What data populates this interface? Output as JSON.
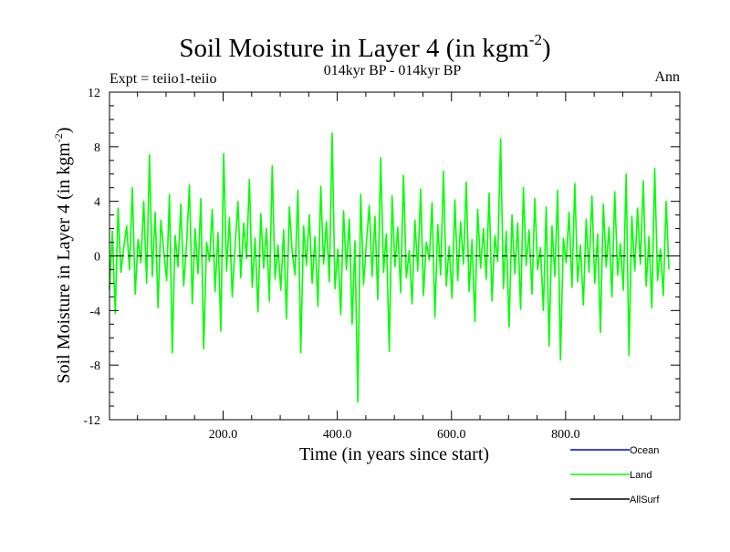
{
  "header": {
    "title_main": "Soil Moisture in Layer 4 (in kgm",
    "title_sup": "-2",
    "title_close": ")",
    "subtitle": "014kyr BP - 014kyr BP",
    "expt_label": "Expt = teiio1-teiio",
    "season_label": "Ann"
  },
  "colors": {
    "ocean": "#0000ff",
    "land": "#00ff00",
    "allsurf": "#000000",
    "axis": "#000000"
  },
  "chart_data": {
    "type": "line",
    "title": "Soil Moisture in Layer 4 (in kgm-2)",
    "subtitle": "014kyr BP - 014kyr BP",
    "xlabel": "Time (in years since start)",
    "ylabel_main": "Soil Moisture in Layer 4 (in kgm",
    "ylabel_sup": "-2",
    "ylabel_close": ")",
    "xlim": [
      1,
      1000
    ],
    "ylim": [
      -12,
      12
    ],
    "x_ticks": [
      200,
      400,
      600,
      800
    ],
    "x_tick_labels": [
      "200.0",
      "400.0",
      "600.0",
      "800.0"
    ],
    "y_ticks": [
      -12,
      -8,
      -4,
      0,
      4,
      8,
      12
    ],
    "y_tick_labels": [
      "-12",
      "-8",
      "-4",
      "0",
      "4",
      "8",
      "12"
    ],
    "zero_line": true,
    "legend": {
      "placement": "bottom-right",
      "entries": [
        {
          "name": "Ocean",
          "color": "#0000ff"
        },
        {
          "name": "Land",
          "color": "#00ff00"
        },
        {
          "name": "AllSurf",
          "color": "#000000"
        }
      ]
    },
    "series": [
      {
        "name": "Land",
        "color": "#00ff00",
        "x_step": 5,
        "values": [
          -2.5,
          1.8,
          -4.2,
          3.5,
          -1.2,
          0.6,
          2.2,
          -1.0,
          5.0,
          -2.8,
          1.2,
          -0.5,
          4.0,
          -2.0,
          7.4,
          -1.5,
          3.2,
          -3.8,
          2.6,
          0.4,
          -1.8,
          4.5,
          -7.1,
          1.5,
          -0.8,
          3.8,
          -2.2,
          0.9,
          5.2,
          -3.5,
          2.0,
          -1.3,
          4.2,
          -6.8,
          1.0,
          -0.4,
          3.4,
          -2.6,
          1.7,
          -5.5,
          7.5,
          -1.1,
          2.8,
          -3.0,
          0.7,
          4.0,
          -1.6,
          2.4,
          -0.2,
          5.6,
          -2.3,
          1.3,
          -4.1,
          3.1,
          -0.9,
          2.0,
          -3.3,
          6.6,
          -1.7,
          0.8,
          -2.5,
          1.9,
          -4.6,
          3.6,
          0.3,
          -1.4,
          4.8,
          -7.1,
          2.2,
          -0.7,
          3.0,
          -2.0,
          1.4,
          -3.7,
          5.1,
          -0.6,
          2.5,
          -1.9,
          9.0,
          -2.4,
          0.5,
          -4.3,
          3.3,
          -1.0,
          2.7,
          -5.0,
          1.1,
          -10.7,
          4.5,
          -2.1,
          0.9,
          3.7,
          -1.5,
          2.9,
          -3.2,
          7.2,
          -1.2,
          1.6,
          -7.0,
          4.4,
          -0.8,
          2.1,
          -2.7,
          5.9,
          -1.6,
          0.4,
          -3.5,
          2.6,
          -1.1,
          4.9,
          -2.9,
          1.0,
          -0.3,
          3.9,
          -4.5,
          2.3,
          -1.4,
          6.2,
          -2.2,
          0.7,
          -3.1,
          4.1,
          -1.8,
          2.5,
          -0.6,
          5.4,
          -2.6,
          1.2,
          -4.8,
          3.4,
          -0.9,
          2.0,
          -1.7,
          4.6,
          -3.3,
          1.5,
          -0.4,
          8.6,
          -2.4,
          1.8,
          -5.2,
          3.0,
          -1.3,
          2.4,
          -3.9,
          5.0,
          -0.7,
          1.9,
          -2.8,
          4.2,
          -1.0,
          0.6,
          -4.0,
          3.6,
          -6.6,
          2.2,
          -1.5,
          4.8,
          -7.6,
          1.3,
          -0.5,
          3.2,
          -2.3,
          5.3,
          -1.9,
          0.8,
          -3.6,
          2.7,
          -1.2,
          4.4,
          -2.0,
          1.6,
          -5.6,
          3.8,
          -0.8,
          2.1,
          -3.0,
          4.7,
          -1.4,
          0.9,
          -2.5,
          6.0,
          -7.3,
          2.9,
          -1.1,
          3.5,
          -0.6,
          5.5,
          -2.2,
          1.4,
          -3.8,
          6.4,
          -1.8,
          0.5,
          -2.9,
          4.0,
          -1.0
        ]
      },
      {
        "name": "Ocean",
        "color": "#0000ff",
        "values": []
      },
      {
        "name": "AllSurf",
        "color": "#000000",
        "values": []
      }
    ]
  }
}
